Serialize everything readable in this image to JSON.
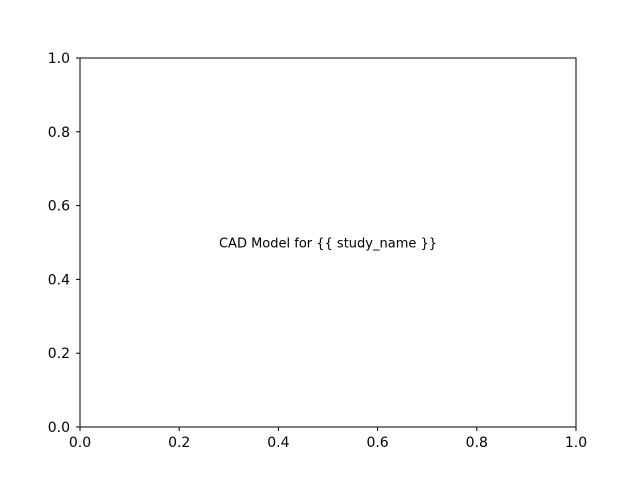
{
  "chart_data": {
    "type": "scatter",
    "title": "",
    "xlabel": "",
    "ylabel": "",
    "xlim": [
      0,
      1
    ],
    "ylim": [
      0,
      1
    ],
    "grid": false,
    "series": [],
    "x_ticks": [
      {
        "value": 0.0,
        "label": "0.0"
      },
      {
        "value": 0.2,
        "label": "0.2"
      },
      {
        "value": 0.4,
        "label": "0.4"
      },
      {
        "value": 0.6,
        "label": "0.6"
      },
      {
        "value": 0.8,
        "label": "0.8"
      },
      {
        "value": 1.0,
        "label": "1.0"
      }
    ],
    "y_ticks": [
      {
        "value": 0.0,
        "label": "0.0"
      },
      {
        "value": 0.2,
        "label": "0.2"
      },
      {
        "value": 0.4,
        "label": "0.4"
      },
      {
        "value": 0.6,
        "label": "0.6"
      },
      {
        "value": 0.8,
        "label": "0.8"
      },
      {
        "value": 1.0,
        "label": "1.0"
      }
    ],
    "annotations": [
      {
        "text": "CAD Model for {{ study_name }}",
        "x": 0.5,
        "y": 0.5
      }
    ]
  },
  "colors": {
    "axis": "#000000",
    "background": "#ffffff"
  }
}
